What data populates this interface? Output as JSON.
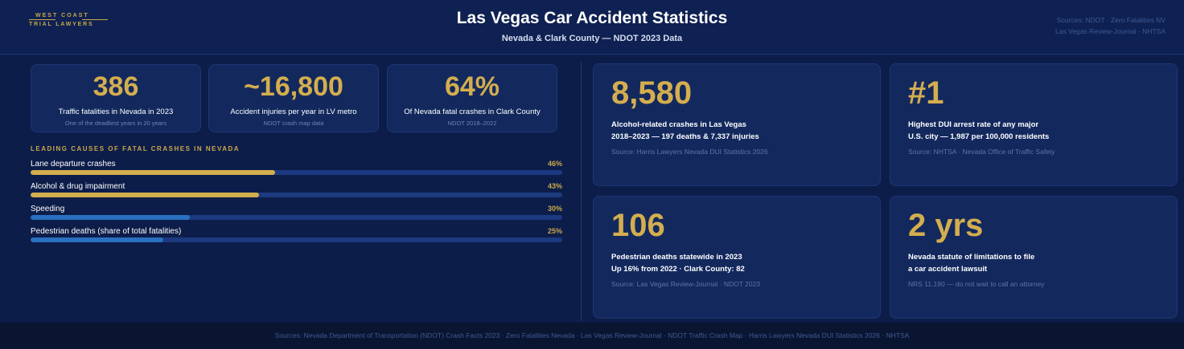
{
  "header": {
    "logo": {
      "line1": "WEST COAST",
      "line2": "TRIAL LAWYERS"
    },
    "title": "Las Vegas Car Accident Statistics",
    "subtitle": "Nevada & Clark County — NDOT 2023 Data",
    "sources": {
      "line1": "Sources: NDOT · Zero Fatalities NV",
      "line2": "Las Vegas Review-Journal · NHTSA"
    }
  },
  "stats": [
    {
      "value": "386",
      "label": "Traffic fatalities in Nevada in 2023",
      "sub": "One of the deadliest years in 20 years"
    },
    {
      "value": "~16,800",
      "label": "Accident injuries per year in LV metro",
      "sub": "NDOT crash map data"
    },
    {
      "value": "64%",
      "label": "Of Nevada fatal crashes in Clark County",
      "sub": "NDOT 2018–2022"
    }
  ],
  "causes": {
    "title": "LEADING CAUSES OF FATAL CRASHES IN NEVADA",
    "items": [
      {
        "label": "Lane departure crashes",
        "pct": "46%",
        "value": 46,
        "color": "#d4ae4e"
      },
      {
        "label": "Alcohol & drug impairment",
        "pct": "43%",
        "value": 43,
        "color": "#d4ae4e"
      },
      {
        "label": "Speeding",
        "pct": "30%",
        "value": 30,
        "color": "#2a6fc0"
      },
      {
        "label": "Pedestrian deaths (share of total fatalities)",
        "pct": "25%",
        "value": 25,
        "color": "#2a6fc0"
      }
    ]
  },
  "cards": [
    {
      "value": "8,580",
      "line1": "Alcohol-related crashes in Las Vegas",
      "line2": "2018–2023 — 197 deaths & 7,337 injuries",
      "source": "Source: Harris Lawyers Nevada DUI Statistics 2026"
    },
    {
      "value": "#1",
      "line1": "Highest DUI arrest rate of any major",
      "line2": "U.S. city — 1,987 per 100,000 residents",
      "source": "Source: NHTSA · Nevada Office of Traffic Safety"
    },
    {
      "value": "106",
      "line1": "Pedestrian deaths statewide in 2023",
      "line2": "Up 16% from 2022 · Clark County: 82",
      "source": "Source: Las Vegas Review-Journal · NDOT 2023"
    },
    {
      "value": "2 yrs",
      "line1": "Nevada statute of limitations to file",
      "line2": "a car accident lawsuit",
      "source": "NRS 11.190 — do not wait to call an attorney"
    }
  ],
  "footer": {
    "text": "Sources: Nevada Department of Transportation (NDOT) Crash Facts 2023 · Zero Fatalities Nevada · Las Vegas Review-Journal · NDOT Traffic Crash Map · Harris Lawyers Nevada DUI Statistics 2026 · NHTSA"
  },
  "colors": {
    "background": "#0d1d4a",
    "card": "#13295e",
    "gold": "#d4ae4e",
    "blue_bar": "#2a6fc0",
    "track": "#1c3a80"
  }
}
